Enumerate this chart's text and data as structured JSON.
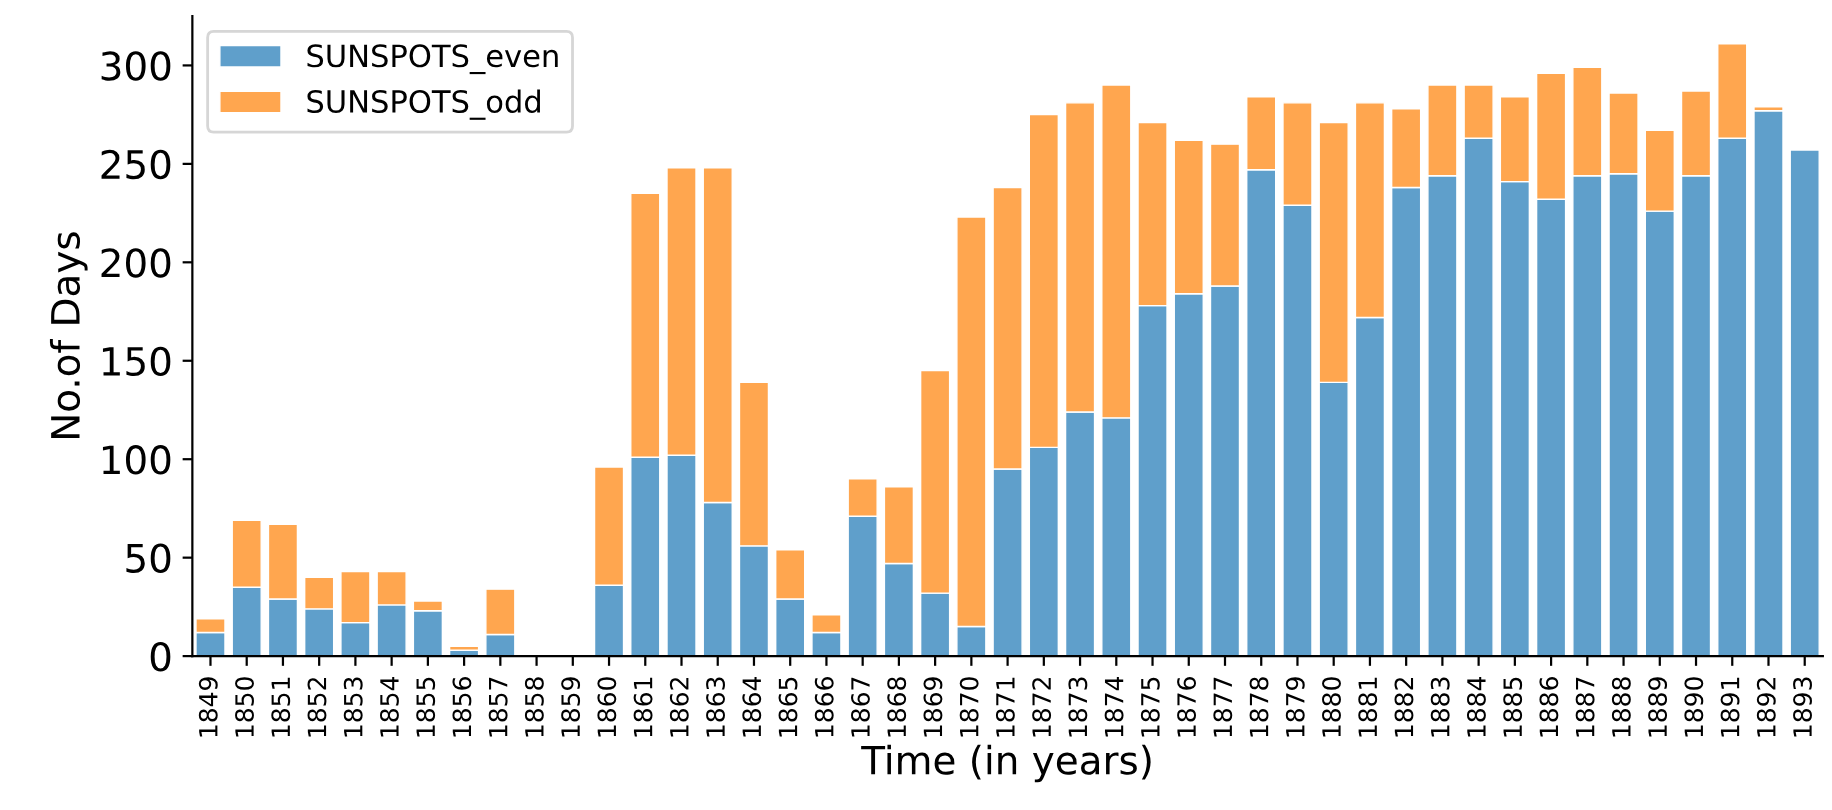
{
  "chart_data": {
    "type": "bar",
    "stacked": true,
    "xlabel": "Time (in years)",
    "ylabel": "No.of Days",
    "categories": [
      "1849",
      "1850",
      "1851",
      "1852",
      "1853",
      "1854",
      "1855",
      "1856",
      "1857",
      "1858",
      "1859",
      "1860",
      "1861",
      "1862",
      "1863",
      "1864",
      "1865",
      "1866",
      "1867",
      "1868",
      "1869",
      "1870",
      "1871",
      "1872",
      "1873",
      "1874",
      "1875",
      "1876",
      "1877",
      "1878",
      "1879",
      "1880",
      "1881",
      "1882",
      "1883",
      "1884",
      "1885",
      "1886",
      "1887",
      "1888",
      "1889",
      "1890",
      "1891",
      "1892",
      "1893"
    ],
    "series": [
      {
        "name": "SUNSPOTS_even",
        "color": "#5f9fcb",
        "values": [
          12,
          35,
          29,
          24,
          17,
          26,
          23,
          3,
          11,
          null,
          null,
          36,
          101,
          102,
          78,
          56,
          29,
          12,
          71,
          47,
          32,
          15,
          95,
          106,
          124,
          121,
          178,
          184,
          188,
          247,
          229,
          139,
          172,
          238,
          244,
          263,
          241,
          232,
          244,
          245,
          226,
          244,
          263,
          277,
          257
        ]
      },
      {
        "name": "SUNSPOTS_odd",
        "color": "#ffa64f",
        "values": [
          7,
          34,
          38,
          16,
          26,
          17,
          5,
          2,
          23,
          null,
          null,
          60,
          134,
          146,
          170,
          83,
          25,
          9,
          19,
          39,
          113,
          208,
          143,
          169,
          157,
          169,
          93,
          78,
          72,
          37,
          52,
          132,
          109,
          40,
          46,
          27,
          43,
          64,
          55,
          41,
          41,
          43,
          48,
          2,
          null
        ]
      }
    ],
    "ylim": [
      0,
      325
    ],
    "yticks": [
      0,
      50,
      100,
      150,
      200,
      250,
      300
    ],
    "grid": false,
    "legend": "top left"
  }
}
